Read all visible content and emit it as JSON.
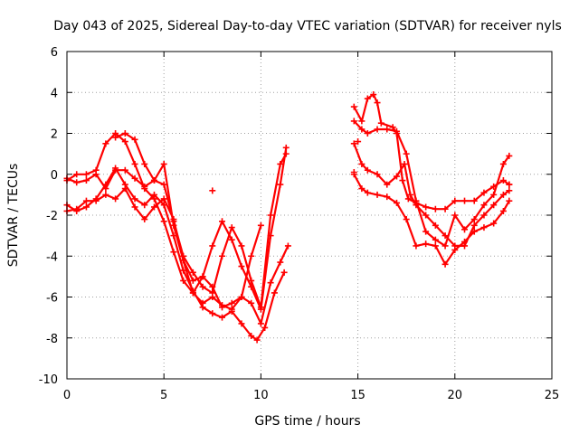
{
  "chart_data": {
    "type": "scatter",
    "title": "Day 043 of 2025, Sidereal Day-to-day VTEC variation (SDTVAR) for receiver nyls",
    "xlabel": "GPS time / hours",
    "ylabel": "SDTVAR / TECUs",
    "xlim": [
      0,
      25
    ],
    "ylim": [
      -10,
      6
    ],
    "xticks": [
      0,
      5,
      10,
      15,
      20,
      25
    ],
    "yticks": [
      -10,
      -8,
      -6,
      -4,
      -2,
      0,
      2,
      4,
      6
    ],
    "grid": true,
    "marker": "+",
    "color": "#ff0000",
    "series": [
      {
        "points": [
          [
            0.0,
            -0.3
          ],
          [
            0.5,
            0.0
          ],
          [
            1.0,
            0.0
          ],
          [
            1.5,
            0.2
          ],
          [
            2.0,
            1.5
          ],
          [
            2.5,
            2.0
          ],
          [
            3.0,
            1.6
          ],
          [
            3.5,
            0.5
          ],
          [
            4.0,
            -0.7
          ],
          [
            4.5,
            -1.2
          ],
          [
            5.0,
            -2.3
          ],
          [
            5.5,
            -3.8
          ],
          [
            6.0,
            -5.2
          ],
          [
            6.5,
            -5.8
          ],
          [
            7.0,
            -5.0
          ],
          [
            7.5,
            -3.5
          ],
          [
            8.0,
            -2.3
          ],
          [
            8.5,
            -3.2
          ],
          [
            9.0,
            -4.5
          ],
          [
            9.5,
            -5.5
          ],
          [
            10.0,
            -6.6
          ],
          [
            10.5,
            -3.0
          ],
          [
            11.0,
            -0.5
          ],
          [
            11.3,
            1.3
          ]
        ]
      },
      {
        "points": [
          [
            0.0,
            -0.2
          ],
          [
            0.5,
            -0.4
          ],
          [
            1.0,
            -0.3
          ],
          [
            1.5,
            0.0
          ],
          [
            2.0,
            -0.7
          ],
          [
            2.5,
            0.2
          ],
          [
            3.0,
            0.2
          ],
          [
            3.5,
            -0.2
          ],
          [
            4.0,
            -0.6
          ],
          [
            4.5,
            -0.3
          ],
          [
            5.0,
            0.5
          ],
          [
            5.5,
            -2.5
          ],
          [
            6.0,
            -4.2
          ],
          [
            6.5,
            -5.8
          ],
          [
            7.0,
            -6.3
          ],
          [
            7.5,
            -6.0
          ],
          [
            8.0,
            -6.4
          ],
          [
            8.5,
            -6.6
          ],
          [
            9.0,
            -6.0
          ],
          [
            9.5,
            -4.0
          ],
          [
            10.0,
            -2.5
          ]
        ]
      },
      {
        "points": [
          [
            0.0,
            -1.5
          ],
          [
            0.5,
            -1.8
          ],
          [
            1.0,
            -1.6
          ],
          [
            1.5,
            -1.2
          ],
          [
            2.0,
            -0.5
          ],
          [
            2.5,
            0.3
          ],
          [
            3.0,
            -0.5
          ],
          [
            3.5,
            -1.2
          ],
          [
            4.0,
            -1.5
          ],
          [
            4.5,
            -1.0
          ],
          [
            5.0,
            -1.5
          ],
          [
            5.5,
            -3.0
          ],
          [
            6.0,
            -4.7
          ],
          [
            6.5,
            -5.7
          ],
          [
            7.0,
            -6.5
          ],
          [
            7.5,
            -6.8
          ],
          [
            8.0,
            -7.0
          ],
          [
            8.5,
            -6.7
          ],
          [
            9.0,
            -7.3
          ],
          [
            9.5,
            -7.9
          ],
          [
            9.8,
            -8.1
          ],
          [
            10.2,
            -7.5
          ],
          [
            10.7,
            -5.8
          ],
          [
            11.2,
            -4.8
          ]
        ]
      },
      {
        "points": [
          [
            0.0,
            -1.8
          ],
          [
            0.5,
            -1.7
          ],
          [
            1.0,
            -1.3
          ],
          [
            1.5,
            -1.3
          ],
          [
            2.0,
            -1.0
          ],
          [
            2.5,
            -1.2
          ],
          [
            3.0,
            -0.7
          ],
          [
            3.5,
            -1.6
          ],
          [
            4.0,
            -2.2
          ],
          [
            4.5,
            -1.6
          ],
          [
            5.0,
            -1.2
          ],
          [
            5.5,
            -2.2
          ],
          [
            6.0,
            -4.2
          ],
          [
            6.5,
            -5.2
          ],
          [
            7.0,
            -5.0
          ],
          [
            7.5,
            -5.5
          ],
          [
            8.0,
            -6.5
          ],
          [
            8.5,
            -6.3
          ],
          [
            9.0,
            -6.0
          ],
          [
            9.5,
            -6.3
          ],
          [
            10.0,
            -7.3
          ],
          [
            10.5,
            -5.3
          ],
          [
            11.0,
            -4.3
          ],
          [
            11.4,
            -3.5
          ]
        ]
      },
      {
        "points": [
          [
            2.5,
            1.8
          ],
          [
            3.0,
            2.0
          ],
          [
            3.5,
            1.7
          ],
          [
            4.0,
            0.5
          ],
          [
            4.5,
            -0.3
          ],
          [
            5.0,
            -0.5
          ],
          [
            5.5,
            -2.3
          ],
          [
            6.0,
            -4.0
          ],
          [
            6.5,
            -4.8
          ],
          [
            7.0,
            -5.5
          ],
          [
            7.5,
            -5.8
          ],
          [
            8.0,
            -4.0
          ],
          [
            8.5,
            -2.6
          ],
          [
            9.0,
            -3.5
          ],
          [
            9.5,
            -5.2
          ],
          [
            10.0,
            -6.5
          ],
          [
            10.5,
            -2.0
          ],
          [
            11.0,
            0.5
          ],
          [
            11.3,
            1.0
          ]
        ]
      },
      {
        "points": [
          [
            14.8,
            3.3
          ],
          [
            15.2,
            2.6
          ],
          [
            15.5,
            3.7
          ],
          [
            15.8,
            3.9
          ],
          [
            16.0,
            3.5
          ],
          [
            16.2,
            2.5
          ],
          [
            16.8,
            2.3
          ],
          [
            17.0,
            2.0
          ],
          [
            17.3,
            -0.3
          ],
          [
            17.6,
            -1.2
          ],
          [
            18.0,
            -1.4
          ],
          [
            18.5,
            -1.6
          ],
          [
            19.0,
            -1.7
          ],
          [
            19.5,
            -1.7
          ],
          [
            20.0,
            -1.3
          ],
          [
            20.5,
            -1.3
          ],
          [
            21.0,
            -1.3
          ],
          [
            21.5,
            -0.9
          ],
          [
            22.0,
            -0.6
          ],
          [
            22.5,
            -0.3
          ],
          [
            22.8,
            -0.5
          ]
        ]
      },
      {
        "points": [
          [
            14.8,
            2.6
          ],
          [
            15.2,
            2.2
          ],
          [
            15.5,
            2.0
          ],
          [
            16.0,
            2.2
          ],
          [
            16.5,
            2.2
          ],
          [
            17.0,
            2.1
          ],
          [
            17.5,
            1.0
          ],
          [
            18.0,
            -1.3
          ],
          [
            18.5,
            -2.8
          ],
          [
            19.0,
            -3.2
          ],
          [
            19.5,
            -3.5
          ],
          [
            20.0,
            -2.0
          ],
          [
            20.5,
            -2.7
          ],
          [
            21.0,
            -2.2
          ],
          [
            21.5,
            -1.5
          ],
          [
            22.0,
            -1.0
          ],
          [
            22.5,
            0.5
          ],
          [
            22.8,
            0.9
          ]
        ]
      },
      {
        "points": [
          [
            14.8,
            1.5
          ],
          [
            15.2,
            0.5
          ],
          [
            15.5,
            0.2
          ],
          [
            16.0,
            0.0
          ],
          [
            16.5,
            -0.5
          ],
          [
            17.0,
            -0.1
          ],
          [
            17.4,
            0.5
          ],
          [
            17.7,
            -1.0
          ],
          [
            18.0,
            -1.5
          ],
          [
            18.5,
            -2.0
          ],
          [
            19.0,
            -2.5
          ],
          [
            19.5,
            -3.0
          ],
          [
            20.0,
            -3.5
          ],
          [
            20.5,
            -3.5
          ],
          [
            21.0,
            -2.5
          ],
          [
            21.5,
            -2.0
          ],
          [
            22.0,
            -1.5
          ],
          [
            22.5,
            -1.0
          ],
          [
            22.8,
            -0.8
          ]
        ]
      },
      {
        "points": [
          [
            14.8,
            0.0
          ],
          [
            15.2,
            -0.7
          ],
          [
            15.5,
            -0.9
          ],
          [
            16.0,
            -1.0
          ],
          [
            16.5,
            -1.1
          ],
          [
            17.0,
            -1.4
          ],
          [
            17.5,
            -2.2
          ],
          [
            18.0,
            -3.5
          ],
          [
            18.5,
            -3.4
          ],
          [
            19.0,
            -3.5
          ],
          [
            19.5,
            -4.4
          ],
          [
            20.0,
            -3.7
          ],
          [
            20.5,
            -3.3
          ],
          [
            21.0,
            -2.8
          ],
          [
            21.5,
            -2.6
          ],
          [
            22.0,
            -2.4
          ],
          [
            22.5,
            -1.8
          ],
          [
            22.8,
            -1.3
          ]
        ]
      }
    ],
    "isolated_points": [
      [
        7.5,
        -0.8
      ],
      [
        14.8,
        0.1
      ],
      [
        15.0,
        1.6
      ],
      [
        22.8,
        -0.5
      ]
    ]
  }
}
